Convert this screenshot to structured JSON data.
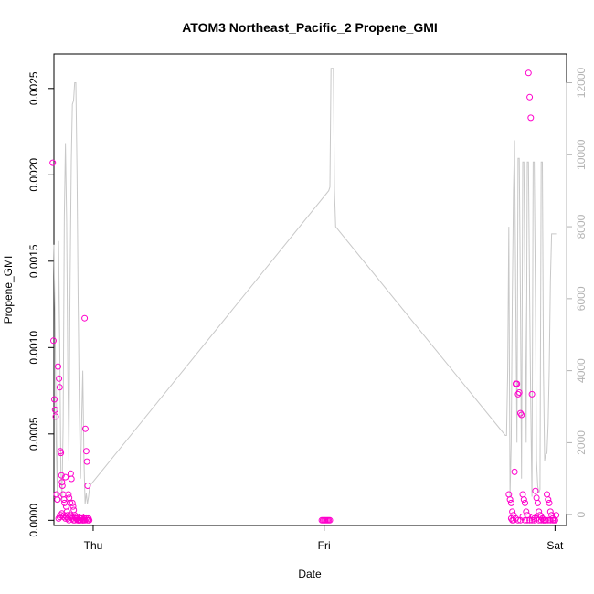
{
  "chart_data": {
    "type": "scatter",
    "title": "ATOM3 Northeast_Pacific_2 Propene_GMI",
    "xlabel": "Date",
    "ylabel": "Propene_GMI",
    "x_ticks": [
      "Thu",
      "Fri",
      "Sat"
    ],
    "y_ticks": [
      "0.0000",
      "0.0005",
      "0.0010",
      "0.0015",
      "0.0020",
      "0.0025"
    ],
    "y_right_ticks": [
      "0",
      "2000",
      "4000",
      "6000",
      "8000",
      "10000",
      "12000"
    ],
    "xlim": [
      -0.17,
      2.05
    ],
    "ylim": [
      -3e-05,
      0.0027
    ],
    "y_right_lim": [
      -300,
      12800
    ],
    "grid": false,
    "colors": {
      "points": "#ff00cc",
      "altitude_line": "#c8c8c8",
      "axis": "#000000",
      "right_axis": "#b3b3b3"
    },
    "series": [
      {
        "role": "scatter",
        "x": [
          -0.175,
          -0.172,
          -0.168,
          -0.165,
          -0.162,
          -0.158,
          -0.155,
          -0.152,
          -0.148,
          -0.145,
          -0.142,
          -0.14,
          -0.137,
          -0.135,
          -0.133,
          -0.13,
          -0.127,
          -0.124,
          -0.12,
          -0.117,
          -0.114,
          -0.11,
          -0.107,
          -0.104,
          -0.1,
          -0.097,
          -0.094,
          -0.09,
          -0.087,
          -0.084,
          -0.08,
          -0.077,
          -0.074,
          -0.07,
          -0.067,
          -0.064,
          -0.06,
          -0.057,
          -0.054,
          -0.05,
          -0.047,
          -0.044,
          -0.04,
          -0.037,
          -0.034,
          -0.03,
          -0.027,
          -0.024,
          -0.02,
          -0.017,
          -0.15,
          -0.145,
          -0.14,
          -0.135,
          -0.13,
          -0.125,
          -0.12,
          -0.115,
          -0.11,
          -0.105,
          -0.1,
          -0.095,
          -0.09,
          -0.085,
          -0.08,
          -0.075,
          -0.07,
          -0.065,
          -0.06,
          -0.055,
          -0.05,
          -0.045,
          -0.04,
          -0.035,
          -0.03,
          -0.025,
          -0.02,
          0.99,
          0.995,
          1.0,
          1.005,
          1.01,
          1.015,
          1.02,
          1.025,
          1.8,
          1.805,
          1.81,
          1.815,
          1.82,
          1.825,
          1.83,
          1.835,
          1.84,
          1.845,
          1.85,
          1.855,
          1.86,
          1.865,
          1.87,
          1.875,
          1.88,
          1.885,
          1.89,
          1.895,
          1.9,
          1.905,
          1.91,
          1.915,
          1.92,
          1.925,
          1.93,
          1.935,
          1.94,
          1.945,
          1.95,
          1.955,
          1.96,
          1.965,
          1.97,
          1.975,
          1.98,
          1.985,
          1.99,
          1.995,
          2.0,
          2.005,
          1.81,
          1.815,
          1.82,
          1.83,
          1.84,
          1.85,
          1.86,
          1.87,
          1.88,
          1.89,
          1.9,
          1.91,
          1.92,
          1.93,
          1.94,
          1.95,
          1.96,
          1.97,
          1.98,
          1.99
        ],
        "y": [
          0.00207,
          0.00104,
          0.0007,
          0.00064,
          0.0006,
          0.00015,
          0.00012,
          0.00089,
          0.00082,
          0.00077,
          0.0004,
          0.00039,
          0.00026,
          0.00022,
          0.0002,
          0.00015,
          0.00012,
          0.0001,
          0.00025,
          8e-05,
          5e-05,
          3e-05,
          0.00015,
          0.00013,
          0.0001,
          0.00027,
          0.00024,
          0.0001,
          8e-05,
          6e-05,
          3e-05,
          2e-05,
          1e-05,
          1e-05,
          0.0,
          0.0,
          0.0,
          0.0,
          1e-05,
          2e-05,
          0.0,
          0.0,
          1e-05,
          0.00117,
          0.00053,
          0.0004,
          0.00034,
          0.0002,
          1e-05,
          0.0,
          1e-05,
          2e-05,
          3e-05,
          4e-05,
          2e-05,
          3e-05,
          1e-05,
          2e-05,
          1e-05,
          0.0,
          3e-05,
          2e-05,
          1e-05,
          0.0,
          0.0,
          1e-05,
          2e-05,
          0.0,
          0.0,
          0.0,
          1e-05,
          0.0,
          0.0,
          0.0,
          1e-05,
          0.0,
          0.0,
          0.0,
          0.0,
          0.0,
          0.0,
          0.0,
          0.0,
          0.0,
          0.0,
          0.00015,
          0.00012,
          0.0001,
          5e-05,
          3e-05,
          0.00028,
          0.00079,
          0.00079,
          0.00073,
          0.00074,
          0.00062,
          0.00061,
          0.00015,
          0.00012,
          0.0001,
          5e-05,
          3e-05,
          0.00259,
          0.00245,
          0.00233,
          0.00073,
          2e-05,
          1e-05,
          0.00017,
          0.00013,
          0.0001,
          5e-05,
          3e-05,
          2e-05,
          1e-05,
          0.0,
          0.0,
          0.0,
          0.00015,
          0.00012,
          0.0001,
          5e-05,
          3e-05,
          1e-05,
          0.0,
          0.0,
          3e-05,
          1e-05,
          0.0,
          0.0,
          1e-05,
          0.0,
          0.0,
          2e-05,
          0.0,
          0.0,
          0.0,
          0.0,
          0.0,
          1e-05,
          0.0,
          0.0,
          0.0,
          0.0,
          0.0,
          0.0,
          0.0
        ]
      },
      {
        "role": "altitude-line",
        "axis": "right",
        "x": [
          -0.17,
          -0.165,
          -0.16,
          -0.155,
          -0.15,
          -0.145,
          -0.14,
          -0.135,
          -0.13,
          -0.125,
          -0.12,
          -0.115,
          -0.11,
          -0.105,
          -0.1,
          -0.095,
          -0.09,
          -0.085,
          -0.08,
          -0.075,
          -0.07,
          -0.065,
          -0.06,
          -0.055,
          -0.05,
          -0.045,
          -0.04,
          -0.035,
          -0.03,
          -0.025,
          -0.02,
          -0.015,
          1.02,
          1.025,
          1.03,
          1.035,
          1.04,
          1.045,
          1.05,
          1.785,
          1.79,
          1.795,
          1.8,
          1.805,
          1.81,
          1.815,
          1.82,
          1.825,
          1.83,
          1.835,
          1.84,
          1.845,
          1.85,
          1.855,
          1.86,
          1.865,
          1.87,
          1.875,
          1.88,
          1.885,
          1.89,
          1.895,
          1.9,
          1.905,
          1.91,
          1.915,
          1.92,
          1.925,
          1.93,
          1.935,
          1.94,
          1.945,
          1.95,
          1.955,
          1.96,
          1.965,
          1.97,
          1.975,
          1.98,
          1.985,
          1.99,
          1.995,
          2.0,
          2.005
        ],
        "y": [
          7500,
          5200,
          2000,
          500,
          7600,
          5000,
          1200,
          400,
          2500,
          8300,
          10300,
          8200,
          4000,
          1500,
          6500,
          9800,
          11400,
          11500,
          12000,
          12000,
          9500,
          6000,
          3000,
          1000,
          2500,
          4000,
          1500,
          300,
          600,
          300,
          500,
          800,
          9000,
          9100,
          12400,
          12400,
          12400,
          9000,
          8000,
          2200,
          2200,
          4000,
          8000,
          500,
          2000,
          6000,
          9000,
          10400,
          6000,
          2000,
          9900,
          9900,
          6000,
          1000,
          9800,
          9800,
          6000,
          2000,
          9800,
          9800,
          6000,
          3000,
          500,
          9800,
          9800,
          6000,
          1500,
          800,
          600,
          700,
          9800,
          9800,
          4000,
          1500,
          1700,
          1700,
          2500,
          4000,
          6500,
          7800,
          7800,
          7800,
          7800,
          7800
        ]
      }
    ]
  }
}
